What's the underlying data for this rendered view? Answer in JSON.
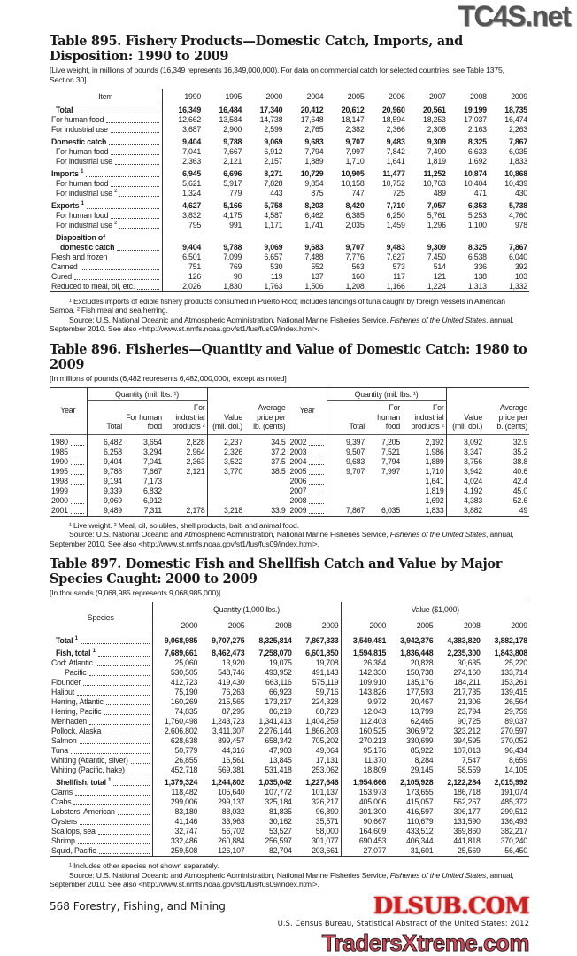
{
  "watermarks": {
    "top": "TC4S.net",
    "middle": "DLSUB.COM",
    "bottom": "TradersXtreme.com"
  },
  "t895": {
    "title": "Table 895. Fishery Products—Domestic Catch, Imports, and Disposition: 1990 to 2009",
    "subtitle": "[Live weight, in millions of pounds (16,349 represents 16,349,000,000). For data on commercial catch for selected countries, see Table 1375, Section 30]",
    "headers": [
      "Item",
      "1990",
      "1995",
      "2000",
      "2004",
      "2005",
      "2006",
      "2007",
      "2008",
      "2009"
    ],
    "rows": [
      {
        "label": "Total",
        "indent": 1,
        "bold": true,
        "values": [
          "16,349",
          "16,484",
          "17,340",
          "20,412",
          "20,612",
          "20,960",
          "20,561",
          "19,199",
          "18,735"
        ]
      },
      {
        "label": "For human food",
        "values": [
          "12,662",
          "13,584",
          "14,738",
          "17,648",
          "18,147",
          "18,594",
          "18,253",
          "17,037",
          "16,474"
        ]
      },
      {
        "label": "For industrial use",
        "values": [
          "3,687",
          "2,900",
          "2,599",
          "2,765",
          "2,382",
          "2,366",
          "2,308",
          "2,163",
          "2,263"
        ]
      },
      {
        "label": "Domestic catch",
        "bold": true,
        "group": true,
        "values": [
          "9,404",
          "9,788",
          "9,069",
          "9,683",
          "9,707",
          "9,483",
          "9,309",
          "8,325",
          "7,867"
        ]
      },
      {
        "label": "For human food",
        "indent": 1,
        "values": [
          "7,041",
          "7,667",
          "6,912",
          "7,794",
          "7,997",
          "7,842",
          "7,490",
          "6,633",
          "6,035"
        ]
      },
      {
        "label": "For industrial use",
        "indent": 1,
        "values": [
          "2,363",
          "2,121",
          "2,157",
          "1,889",
          "1,710",
          "1,641",
          "1,819",
          "1,692",
          "1,833"
        ]
      },
      {
        "label": "Imports",
        "sup": "1",
        "bold": true,
        "group": true,
        "values": [
          "6,945",
          "6,696",
          "8,271",
          "10,729",
          "10,905",
          "11,477",
          "11,252",
          "10,874",
          "10,868"
        ]
      },
      {
        "label": "For human food",
        "indent": 1,
        "values": [
          "5,621",
          "5,917",
          "7,828",
          "9,854",
          "10,158",
          "10,752",
          "10,763",
          "10,404",
          "10,439"
        ]
      },
      {
        "label": "For industrial use",
        "sup": "2",
        "indent": 1,
        "values": [
          "1,324",
          "779",
          "443",
          "875",
          "747",
          "725",
          "489",
          "471",
          "430"
        ]
      },
      {
        "label": "Exports",
        "sup": "1",
        "bold": true,
        "group": true,
        "values": [
          "4,627",
          "5,166",
          "5,758",
          "8,203",
          "8,420",
          "7,710",
          "7,057",
          "6,353",
          "5,738"
        ]
      },
      {
        "label": "For human food",
        "indent": 1,
        "values": [
          "3,832",
          "4,175",
          "4,587",
          "6,462",
          "6,385",
          "6,250",
          "5,761",
          "5,253",
          "4,760"
        ]
      },
      {
        "label": "For industrial use",
        "sup": "2",
        "indent": 1,
        "values": [
          "795",
          "991",
          "1,171",
          "1,741",
          "2,035",
          "1,459",
          "1,296",
          "1,100",
          "978"
        ]
      },
      {
        "label": "Disposition of",
        "indent": 1,
        "bold": true,
        "group": true,
        "nodots": true,
        "values": [
          "",
          "",
          "",
          "",
          "",
          "",
          "",
          "",
          ""
        ]
      },
      {
        "label": "domestic catch",
        "indent": 2,
        "bold": true,
        "values": [
          "9,404",
          "9,788",
          "9,069",
          "9,683",
          "9,707",
          "9,483",
          "9,309",
          "8,325",
          "7,867"
        ]
      },
      {
        "label": "Fresh and frozen",
        "values": [
          "6,501",
          "7,099",
          "6,657",
          "7,488",
          "7,776",
          "7,627",
          "7,450",
          "6,538",
          "6,040"
        ]
      },
      {
        "label": "Canned",
        "values": [
          "751",
          "769",
          "530",
          "552",
          "563",
          "573",
          "514",
          "336",
          "392"
        ]
      },
      {
        "label": "Cured",
        "values": [
          "126",
          "90",
          "119",
          "137",
          "160",
          "117",
          "121",
          "138",
          "103"
        ]
      },
      {
        "label": "Reduced to meal, oil, etc.",
        "values": [
          "2,026",
          "1,830",
          "1,763",
          "1,506",
          "1,208",
          "1,166",
          "1,224",
          "1,313",
          "1,332"
        ]
      }
    ],
    "footnote": "¹ Excludes imports of edible fishery products consumed in Puerto Rico;  includes landings of tuna caught by foreign vessels in American Samoa. ² Fish meal and sea herring.",
    "source": "Source: U.S. National Oceanic and Atmospheric Administration, National Marine Fisheries Service, ",
    "source_italic": "Fisheries of the United States",
    "source_end": ", annual, September 2010. See also <http://www.st.nmfs.noaa.gov/st1/fus/fus09/index.html>."
  },
  "t896": {
    "title": "Table 896. Fisheries—Quantity and Value of Domestic Catch: 1980 to 2009",
    "subtitle": "[In millions of pounds (6,482 represents 6,482,000,000), except as noted]",
    "headers": {
      "year": "Year",
      "quantity": "Quantity (mil. lbs. ¹)",
      "total": "Total",
      "human": "For human food",
      "industrial": "For industrial products ²",
      "value": "Value (mil. dol.)",
      "price": "Average price per lb. (cents)"
    },
    "left": [
      [
        "1980",
        "6,482",
        "3,654",
        "2,828",
        "2,237",
        "34.5"
      ],
      [
        "1985",
        "6,258",
        "3,294",
        "2,964",
        "2,326",
        "37.2"
      ],
      [
        "1990",
        "9,404",
        "7,041",
        "2,363",
        "3,522",
        "37.5"
      ],
      [
        "1995",
        "9,788",
        "7,667",
        "2,121",
        "3,770",
        "38.5"
      ],
      [
        "1998",
        "9,194",
        "7,173",
        "",
        "",
        ""
      ],
      [
        "1999",
        "9,339",
        "6,832",
        "",
        "",
        ""
      ],
      [
        "2000",
        "9,069",
        "6,912",
        "",
        "",
        ""
      ],
      [
        "2001",
        "9,489",
        "7,311",
        "2,178",
        "3,218",
        "33.9"
      ]
    ],
    "right": [
      [
        "2002",
        "9,397",
        "7,205",
        "2,192",
        "3,092",
        "32.9"
      ],
      [
        "2003",
        "9,507",
        "7,521",
        "1,986",
        "3,347",
        "35.2"
      ],
      [
        "2004",
        "9,683",
        "7,794",
        "1,889",
        "3,756",
        "38.8"
      ],
      [
        "2005",
        "9,707",
        "7,997",
        "1,710",
        "3,942",
        "40.6"
      ],
      [
        "2006",
        "",
        "",
        "1,641",
        "4,024",
        "42.4"
      ],
      [
        "2007",
        "",
        "",
        "1,819",
        "4,192",
        "45.0"
      ],
      [
        "2008",
        "",
        "",
        "1,692",
        "4,383",
        "52.6"
      ],
      [
        "2009",
        "7,867",
        "6,035",
        "1,833",
        "3,882",
        "49"
      ]
    ],
    "footnote": "¹ Live weight. ² Meal, oil, solubles, shell products, bait, and animal food.",
    "source": "Source: U.S. National Oceanic and Atmospheric Administration, National Marine Fisheries Service, ",
    "source_italic": "Fisheries of the United States",
    "source_end": ", annual, September 2010. See also <http://www.st.nmfs.noaa.gov/st1/fus/fus09/index.html>."
  },
  "t897": {
    "title": "Table 897. Domestic Fish and Shellfish Catch and Value by Major Species Caught: 2000 to 2009",
    "subtitle": "[In thousands (9,068,985 represents 9,068,985,000)]",
    "headers": {
      "species": "Species",
      "quantity": "Quantity (1,000 lbs.)",
      "value": "Value ($1,000)",
      "years": [
        "2000",
        "2005",
        "2008",
        "2009",
        "2000",
        "2005",
        "2008",
        "2009"
      ]
    },
    "rows": [
      {
        "label": "Total",
        "sup": "1",
        "indent": 1,
        "bold": true,
        "values": [
          "9,068,985",
          "9,707,275",
          "8,325,814",
          "7,867,333",
          "3,549,481",
          "3,942,376",
          "4,383,820",
          "3,882,178"
        ]
      },
      {
        "label": "Fish, total",
        "sup": "1",
        "indent": 1,
        "bold": true,
        "group": true,
        "values": [
          "7,689,661",
          "8,462,473",
          "7,258,070",
          "6,601,850",
          "1,594,815",
          "1,836,448",
          "2,235,300",
          "1,843,808"
        ]
      },
      {
        "label": "Cod: Atlantic",
        "values": [
          "25,060",
          "13,920",
          "19,075",
          "19,708",
          "26,384",
          "20,828",
          "30,635",
          "25,220"
        ]
      },
      {
        "label": "Pacific",
        "indent": 3,
        "values": [
          "530,505",
          "548,746",
          "493,952",
          "491,143",
          "142,330",
          "150,738",
          "274,160",
          "133,714"
        ]
      },
      {
        "label": "Flounder",
        "values": [
          "412,723",
          "419,430",
          "663,116",
          "575,119",
          "109,910",
          "135,176",
          "184,211",
          "153,261"
        ]
      },
      {
        "label": "Halibut",
        "values": [
          "75,190",
          "76,263",
          "66,923",
          "59,716",
          "143,826",
          "177,593",
          "217,735",
          "139,415"
        ]
      },
      {
        "label": "Herring, Atlantic",
        "values": [
          "160,269",
          "215,565",
          "173,217",
          "224,328",
          "9,972",
          "20,467",
          "21,306",
          "26,564"
        ]
      },
      {
        "label": "Herring, Pacific",
        "values": [
          "74,835",
          "87,295",
          "86,219",
          "88,723",
          "12,043",
          "13,799",
          "23,794",
          "29,759"
        ]
      },
      {
        "label": "Menhaden",
        "values": [
          "1,760,498",
          "1,243,723",
          "1,341,413",
          "1,404,259",
          "112,403",
          "62,465",
          "90,725",
          "89,037"
        ]
      },
      {
        "label": "Pollock, Alaska",
        "values": [
          "2,606,802",
          "3,411,307",
          "2,276,144",
          "1,866,203",
          "160,525",
          "306,972",
          "323,212",
          "270,597"
        ]
      },
      {
        "label": "Salmon",
        "values": [
          "628,638",
          "899,457",
          "658,342",
          "705,202",
          "270,213",
          "330,699",
          "394,595",
          "370,052"
        ]
      },
      {
        "label": "Tuna",
        "values": [
          "50,779",
          "44,316",
          "47,903",
          "49,064",
          "95,176",
          "85,922",
          "107,013",
          "96,434"
        ]
      },
      {
        "label": "Whiting (Atlantic, silver)",
        "values": [
          "26,855",
          "16,561",
          "13,845",
          "17,131",
          "11,370",
          "8,284",
          "7,547",
          "8,659"
        ]
      },
      {
        "label": "Whiting (Pacific, hake)",
        "values": [
          "452,718",
          "569,381",
          "531,418",
          "253,062",
          "18,809",
          "29,145",
          "58,559",
          "14,105"
        ]
      },
      {
        "label": "Shellfish, total",
        "sup": "1",
        "indent": 1,
        "bold": true,
        "group": true,
        "values": [
          "1,379,324",
          "1,244,802",
          "1,035,042",
          "1,227,646",
          "1,954,666",
          "2,105,928",
          "2,122,284",
          "2,015,992"
        ]
      },
      {
        "label": "Clams",
        "values": [
          "118,482",
          "105,640",
          "107,772",
          "101,137",
          "153,973",
          "173,655",
          "186,718",
          "191,074"
        ]
      },
      {
        "label": "Crabs",
        "values": [
          "299,006",
          "299,137",
          "325,184",
          "326,217",
          "405,006",
          "415,057",
          "562,267",
          "485,372"
        ]
      },
      {
        "label": "Lobsters: American",
        "values": [
          "83,180",
          "88,032",
          "81,835",
          "96,890",
          "301,300",
          "416,597",
          "306,177",
          "299,512"
        ]
      },
      {
        "label": "Oysters",
        "values": [
          "41,146",
          "33,963",
          "30,162",
          "35,571",
          "90,667",
          "110,679",
          "131,590",
          "136,493"
        ]
      },
      {
        "label": "Scallops, sea",
        "values": [
          "32,747",
          "56,702",
          "53,527",
          "58,000",
          "164,609",
          "433,512",
          "369,860",
          "382,217"
        ]
      },
      {
        "label": "Shrimp",
        "values": [
          "332,486",
          "260,884",
          "256,597",
          "301,077",
          "690,453",
          "406,344",
          "441,818",
          "370,240"
        ]
      },
      {
        "label": "Squid, Pacific",
        "values": [
          "259,508",
          "126,107",
          "82,704",
          "203,661",
          "27,077",
          "31,601",
          "25,569",
          "56,450"
        ]
      }
    ],
    "footnote": "¹ Includes other species not shown separately.",
    "source": "Source: U.S. National Oceanic and Atmospheric Administration, National Marine Fisheries Service, ",
    "source_italic": "Fisheries of the United States",
    "source_end": ", annual, September 2010. See also <http://www.st.nmfs.noaa.gov/st1/fus/fus09/index.html>."
  },
  "footer": {
    "page": "568  Forestry, Fishing, and Mining",
    "credit": "U.S. Census Bureau, Statistical Abstract of the United States: 2012"
  }
}
